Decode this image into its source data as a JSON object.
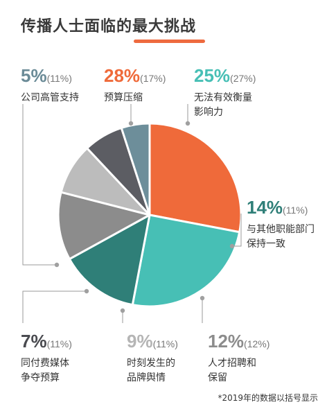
{
  "chart_data": {
    "type": "pie",
    "title": "传播人士面临的最大挑战",
    "slices": [
      {
        "name": "预算压缩",
        "value": 28,
        "prev": "(17%)",
        "pct_label": "28%",
        "lines": [
          "预算压缩"
        ],
        "color": "#ef6a3a",
        "pct_color": "#ef6a3a"
      },
      {
        "name": "无法有效衡量影响力",
        "value": 25,
        "prev": "(27%)",
        "pct_label": "25%",
        "lines": [
          "无法有效衡量",
          "影响力"
        ],
        "color": "#47bfb5",
        "pct_color": "#47bfb5"
      },
      {
        "name": "与其他职能部门保持一致",
        "value": 14,
        "prev": "(11%)",
        "pct_label": "14%",
        "lines": [
          "与其他职能部门",
          "保持一致"
        ],
        "color": "#2f7f78",
        "pct_color": "#2f7f78"
      },
      {
        "name": "人才招聘和保留",
        "value": 12,
        "prev": "(12%)",
        "pct_label": "12%",
        "lines": [
          "人才招聘和",
          "保留"
        ],
        "color": "#8c8c8c",
        "pct_color": "#8c8c8c"
      },
      {
        "name": "时刻发生的品牌舆情",
        "value": 9,
        "prev": "(11%)",
        "pct_label": "9%",
        "lines": [
          "时刻发生的",
          "品牌舆情"
        ],
        "color": "#bcbcbc",
        "pct_color": "#b5b5b5"
      },
      {
        "name": "同付费媒体争夺预算",
        "value": 7,
        "prev": "(11%)",
        "pct_label": "7%",
        "lines": [
          "同付费媒体",
          "争夺预算"
        ],
        "color": "#5c5d63",
        "pct_color": "#4a4b50"
      },
      {
        "name": "公司高管支持",
        "value": 5,
        "prev": "(11%)",
        "pct_label": "5%",
        "lines": [
          "公司高管支持"
        ],
        "color": "#6d8e9a",
        "pct_color": "#6b8b97"
      }
    ],
    "footnote": "*2019年的数据以括号显示"
  }
}
